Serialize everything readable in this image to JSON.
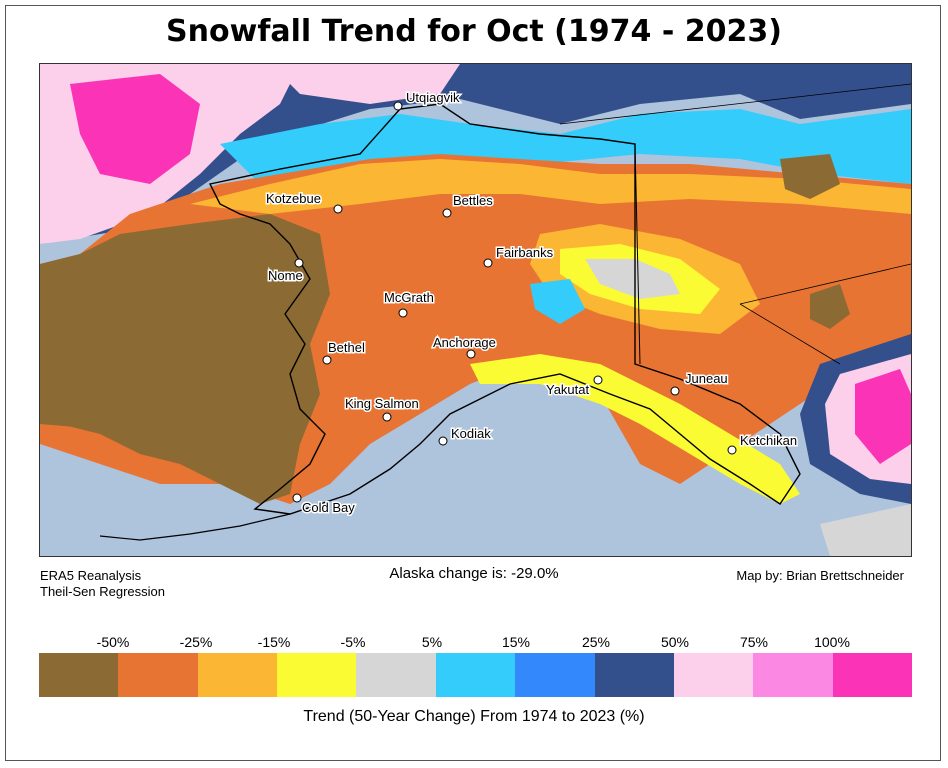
{
  "title": "Snowfall Trend for Oct (1974 - 2023)",
  "source_line1": "ERA5 Reanalysis",
  "source_line2": "Theil-Sen Regression",
  "statewide_change": "Alaska change is: -29.0%",
  "credit": "Map by: Brian Brettschneider",
  "colorbar": {
    "label": "Trend (50-Year Change) From 1974 to 2023 (%)",
    "ticks": [
      "-50%",
      "-25%",
      "-15%",
      "-5%",
      "5%",
      "15%",
      "25%",
      "50%",
      "75%",
      "100%"
    ],
    "colors": [
      "#8c6a33",
      "#e87433",
      "#fbb634",
      "#fbfb34",
      "#d6d6d6",
      "#33ccfb",
      "#3388fb",
      "#33508c",
      "#fccfea",
      "#fb88e2",
      "#fb33b6"
    ]
  },
  "cities": [
    {
      "name": "Utqiagvik"
    },
    {
      "name": "Kotzebue"
    },
    {
      "name": "Bettles"
    },
    {
      "name": "Fairbanks"
    },
    {
      "name": "Nome"
    },
    {
      "name": "McGrath"
    },
    {
      "name": "Anchorage"
    },
    {
      "name": "Bethel"
    },
    {
      "name": "Yakutat"
    },
    {
      "name": "Juneau"
    },
    {
      "name": "King Salmon"
    },
    {
      "name": "Kodiak"
    },
    {
      "name": "Ketchikan"
    },
    {
      "name": "Cold Bay"
    }
  ]
}
